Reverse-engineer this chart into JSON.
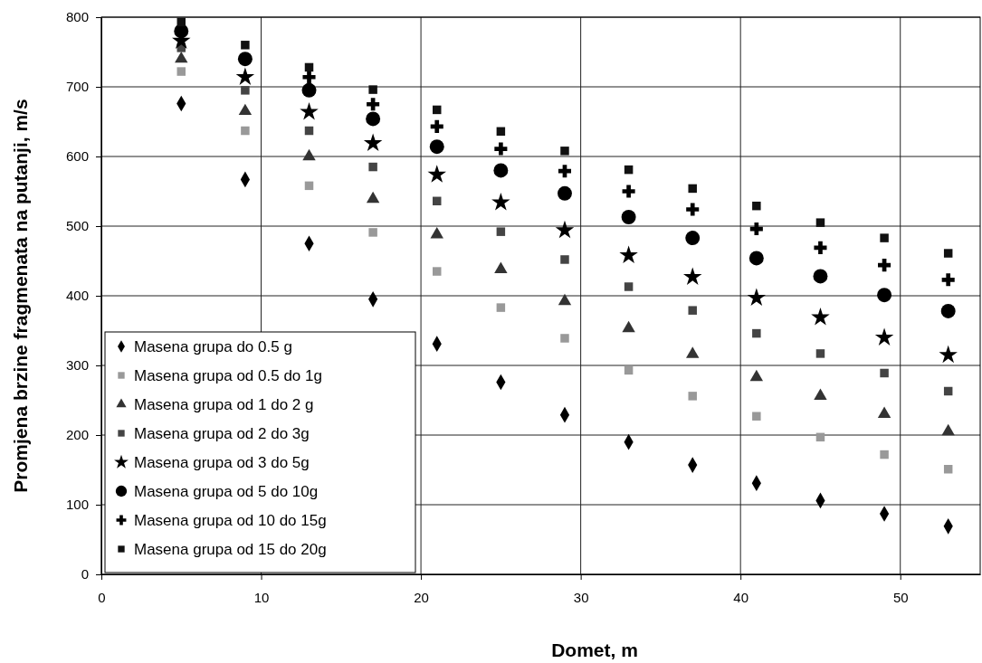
{
  "chart_data": {
    "type": "scatter",
    "xlabel": "Domet, m",
    "ylabel": "Promjena brzine fragmenata na putanji, m/s",
    "x": [
      5,
      9,
      13,
      17,
      21,
      25,
      29,
      33,
      37,
      41,
      45,
      49,
      53
    ],
    "xlim": [
      0,
      55
    ],
    "xticks": [
      0,
      10,
      20,
      30,
      40,
      50
    ],
    "ylim": [
      0,
      800
    ],
    "yticks": [
      0,
      100,
      200,
      300,
      400,
      500,
      600,
      700,
      800
    ],
    "grid": true,
    "legend": "bottom left",
    "series": [
      {
        "name": "Masena grupa do 0.5 g",
        "color": "#000000",
        "marker": "diamond",
        "values": [
          676,
          567,
          475,
          395,
          331,
          276,
          229,
          190,
          157,
          131,
          106,
          87,
          69
        ]
      },
      {
        "name": "Masena grupa od 0.5 do 1g",
        "color": "#999999",
        "marker": "square",
        "values": [
          722,
          637,
          558,
          491,
          435,
          383,
          339,
          293,
          256,
          227,
          197,
          172,
          151
        ]
      },
      {
        "name": "Masena grupa od 1 do 2 g",
        "color": "#333333",
        "marker": "triangle",
        "values": [
          740,
          665,
          600,
          539,
          488,
          438,
          392,
          353,
          316,
          283,
          256,
          230,
          205
        ]
      },
      {
        "name": "Masena grupa od 2 do 3g",
        "color": "#444444",
        "marker": "square",
        "values": [
          756,
          695,
          637,
          585,
          536,
          492,
          452,
          413,
          379,
          346,
          317,
          289,
          263
        ]
      },
      {
        "name": "Masena grupa od 3 do 5g",
        "color": "#000000",
        "marker": "star",
        "values": [
          766,
          714,
          664,
          619,
          574,
          534,
          494,
          458,
          427,
          397,
          369,
          340,
          315
        ]
      },
      {
        "name": "Masena grupa od 5 do 10g",
        "color": "#000000",
        "marker": "circle",
        "values": [
          780,
          740,
          695,
          654,
          614,
          580,
          547,
          513,
          483,
          454,
          428,
          401,
          378
        ]
      },
      {
        "name": "Masena grupa od 10 do 15g",
        "color": "#000000",
        "marker": "cross",
        "values": [
          null,
          null,
          714,
          675,
          643,
          611,
          579,
          550,
          524,
          496,
          469,
          444,
          423
        ]
      },
      {
        "name": "Masena grupa od 15 do 20g",
        "color": "#111111",
        "marker": "square",
        "values": [
          793,
          760,
          728,
          696,
          667,
          636,
          608,
          581,
          554,
          529,
          505,
          483,
          461
        ]
      }
    ]
  }
}
